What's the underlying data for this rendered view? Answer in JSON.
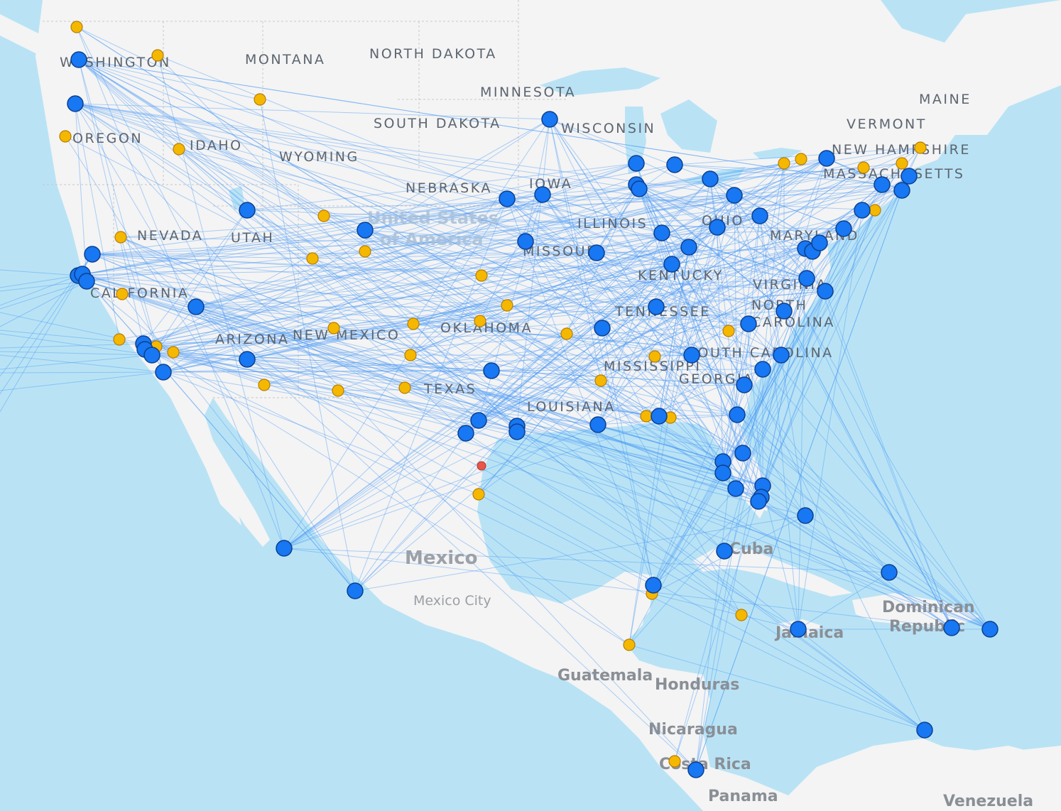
{
  "map": {
    "colors": {
      "water": "#b9e3f5",
      "land": "#f4f4f4",
      "route": "#4d9bf7",
      "hub": "#1877f2",
      "secondary": "#f5b800",
      "special": "#e8564a"
    },
    "country_labels": [
      "United States",
      "of America",
      "Mexico",
      "Cuba",
      "Guatemala",
      "Honduras",
      "Nicaragua",
      "Costa Rica",
      "Panama",
      "Venezuela",
      "Jamaica",
      "Dominican",
      "Republic"
    ],
    "city_labels": [
      "Mexico City"
    ],
    "state_labels": [
      "WASHINGTON",
      "MONTANA",
      "NORTH DAKOTA",
      "MINNESOTA",
      "MAINE",
      "VERMONT",
      "NEW HAMPSHIRE",
      "MASSACHUSETTS",
      "OREGON",
      "IDAHO",
      "WYOMING",
      "SOUTH DAKOTA",
      "WISCONSIN",
      "NEBRASKA",
      "IOWA",
      "NEVADA",
      "UTAH",
      "ILLINOIS",
      "OHIO",
      "MARYLAND",
      "MISSOURI",
      "KENTUCKY",
      "VIRGINIA",
      "CALIFORNIA",
      "TENNESSEE",
      "NORTH",
      "CAROLINA",
      "ARIZONA",
      "NEW MEXICO",
      "OKLAHOMA",
      "SOUTH CAROLINA",
      "MISSISSIPPI",
      "GEORGIA",
      "TEXAS",
      "LOUISIANA"
    ]
  }
}
